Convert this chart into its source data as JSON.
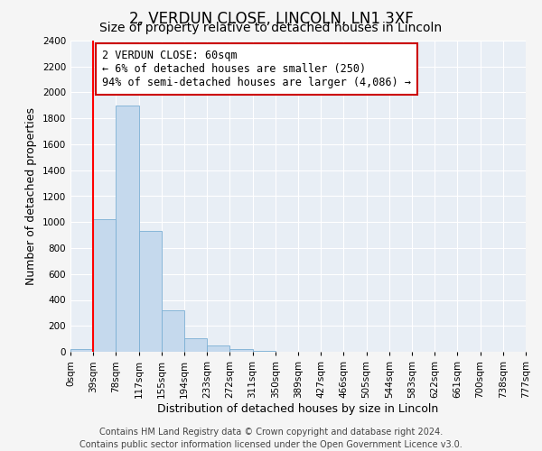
{
  "title": "2, VERDUN CLOSE, LINCOLN, LN1 3XF",
  "subtitle": "Size of property relative to detached houses in Lincoln",
  "xlabel": "Distribution of detached houses by size in Lincoln",
  "ylabel": "Number of detached properties",
  "bin_labels": [
    "0sqm",
    "39sqm",
    "78sqm",
    "117sqm",
    "155sqm",
    "194sqm",
    "233sqm",
    "272sqm",
    "311sqm",
    "350sqm",
    "389sqm",
    "427sqm",
    "466sqm",
    "505sqm",
    "544sqm",
    "583sqm",
    "622sqm",
    "661sqm",
    "700sqm",
    "738sqm",
    "777sqm"
  ],
  "bar_values": [
    20,
    1025,
    1900,
    930,
    320,
    105,
    50,
    20,
    10,
    0,
    0,
    0,
    0,
    0,
    0,
    0,
    0,
    0,
    0,
    0
  ],
  "bar_color": "#c5d9ed",
  "bar_edge_color": "#7bafd4",
  "vline_x": 1,
  "vline_color": "red",
  "ylim": [
    0,
    2400
  ],
  "yticks": [
    0,
    200,
    400,
    600,
    800,
    1000,
    1200,
    1400,
    1600,
    1800,
    2000,
    2200,
    2400
  ],
  "annotation_title": "2 VERDUN CLOSE: 60sqm",
  "annotation_line1": "← 6% of detached houses are smaller (250)",
  "annotation_line2": "94% of semi-detached houses are larger (4,086) →",
  "annotation_box_color": "#ffffff",
  "annotation_box_edge": "#cc0000",
  "footer_line1": "Contains HM Land Registry data © Crown copyright and database right 2024.",
  "footer_line2": "Contains public sector information licensed under the Open Government Licence v3.0.",
  "bg_color": "#e8eef5",
  "grid_color": "#ffffff",
  "fig_bg_color": "#f5f5f5",
  "title_fontsize": 12,
  "subtitle_fontsize": 10,
  "axis_label_fontsize": 9,
  "tick_fontsize": 7.5,
  "annotation_fontsize": 8.5,
  "footer_fontsize": 7
}
